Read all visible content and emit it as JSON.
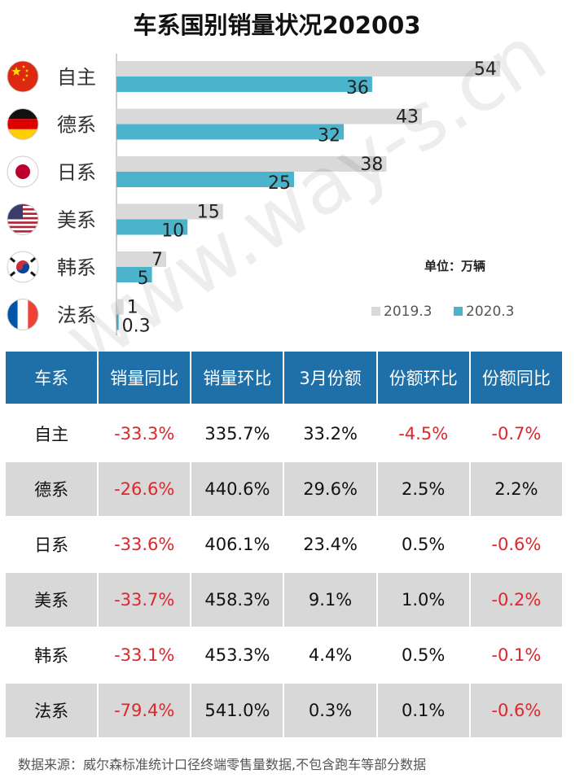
{
  "chart_data": {
    "type": "bar",
    "title": "车系国别销量状况202003",
    "categories": [
      "自主",
      "德系",
      "日系",
      "美系",
      "韩系",
      "法系"
    ],
    "flags": [
      "china-flag-icon",
      "germany-flag-icon",
      "japan-flag-icon",
      "usa-flag-icon",
      "korea-flag-icon",
      "france-flag-icon"
    ],
    "series": [
      {
        "name": "2019.3",
        "values": [
          54,
          43,
          38,
          15,
          7,
          1
        ],
        "color": "#d9d9d9"
      },
      {
        "name": "2020.3",
        "values": [
          36,
          32,
          25,
          10,
          5,
          0.3
        ],
        "color": "#4bb3cc"
      }
    ],
    "unit_label": "单位：万辆",
    "xlim": [
      0,
      60
    ],
    "grid": false,
    "legend": "bottom-right"
  },
  "table": {
    "headers": [
      "车系",
      "销量同比",
      "销量环比",
      "3月份额",
      "份额环比",
      "份额同比"
    ],
    "rows": [
      [
        "自主",
        "-33.3%",
        "335.7%",
        "33.2%",
        "-4.5%",
        "-0.7%"
      ],
      [
        "德系",
        "-26.6%",
        "440.6%",
        "29.6%",
        "2.5%",
        "2.2%"
      ],
      [
        "日系",
        "-33.6%",
        "406.1%",
        "23.4%",
        "0.5%",
        "-0.6%"
      ],
      [
        "美系",
        "-33.7%",
        "458.3%",
        "9.1%",
        "1.0%",
        "-0.2%"
      ],
      [
        "韩系",
        "-33.1%",
        "453.3%",
        "4.4%",
        "0.5%",
        "-0.1%"
      ],
      [
        "法系",
        "-79.4%",
        "541.0%",
        "0.3%",
        "0.1%",
        "-0.6%"
      ]
    ]
  },
  "colors": {
    "header_bg": "#1f6fa8",
    "negative": "#e0252b",
    "row_shade": "#d8d8d8"
  },
  "watermark": "www.way-s.cn",
  "source": "数据来源：威尔森标准统计口径终端零售量数据,不包含跑车等部分数据"
}
